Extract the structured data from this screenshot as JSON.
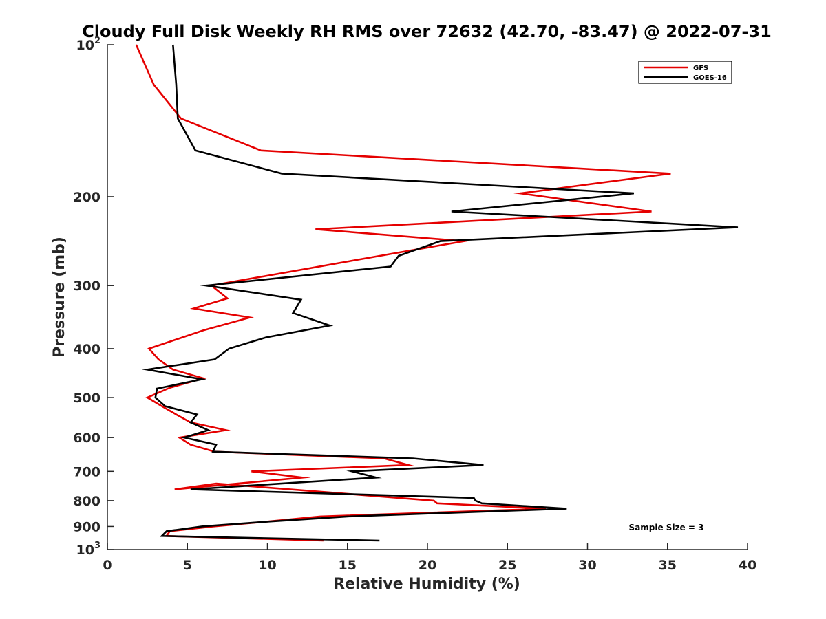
{
  "chart_data": {
    "type": "line",
    "title": "Cloudy Full Disk Weekly RH RMS over 72632 (42.70, -83.47) @ 2022-07-31",
    "xlabel": "Relative Humidity (%)",
    "ylabel": "Pressure (mb)",
    "xlim": [
      0,
      40
    ],
    "ylim": [
      100,
      1000
    ],
    "yscale": "log",
    "y_direction": "reversed",
    "x_ticks": [
      "0",
      "5",
      "10",
      "15",
      "20",
      "25",
      "30",
      "35",
      "40"
    ],
    "y_ticks": [
      {
        "value": 100,
        "base": "10",
        "exp": "2"
      },
      {
        "value": 200,
        "label": "200"
      },
      {
        "value": 300,
        "label": "300"
      },
      {
        "value": 400,
        "label": "400"
      },
      {
        "value": 500,
        "label": "500"
      },
      {
        "value": 600,
        "label": "600"
      },
      {
        "value": 700,
        "label": "700"
      },
      {
        "value": 800,
        "label": "800"
      },
      {
        "value": 900,
        "label": "900"
      },
      {
        "value": 1000,
        "base": "10",
        "exp": "3"
      }
    ],
    "legend_position": "top-right",
    "annotation": "Sample Size = 3",
    "series": [
      {
        "name": "GFS",
        "color": "#e50000",
        "x": [
          1.8,
          2.9,
          4.6,
          9.6,
          35.2,
          25.8,
          34.0,
          13.0,
          22.3,
          17.6,
          6.5,
          7.5,
          5.4,
          8.9,
          6.0,
          2.6,
          3.2,
          4.1,
          6.0,
          3.9,
          2.5,
          3.4,
          4.3,
          5.2,
          7.4,
          4.5,
          5.2,
          6.7,
          17.3,
          18.8,
          9.0,
          12.2,
          4.2,
          6.8,
          20.4,
          20.6,
          27.4,
          13.3,
          10.0,
          6.6,
          3.9,
          3.7,
          13.5
        ],
        "y": [
          100,
          120,
          140,
          162,
          180,
          197,
          214,
          232,
          245,
          260,
          300,
          318,
          333,
          347,
          368,
          400,
          420,
          440,
          458,
          478,
          500,
          520,
          540,
          560,
          580,
          600,
          620,
          640,
          660,
          680,
          700,
          720,
          760,
          740,
          800,
          810,
          830,
          860,
          880,
          900,
          920,
          940,
          960
        ]
      },
      {
        "name": "GOES-16",
        "color": "#000000",
        "x": [
          4.1,
          4.3,
          4.4,
          5.5,
          10.9,
          32.9,
          21.5,
          39.4,
          20.8,
          18.2,
          17.7,
          6.2,
          12.1,
          11.6,
          13.9,
          9.9,
          7.6,
          6.7,
          2.5,
          5.9,
          3.1,
          3.0,
          3.6,
          5.6,
          5.2,
          6.3,
          4.8,
          6.8,
          6.6,
          19.1,
          23.5,
          15.3,
          16.8,
          5.2,
          22.9,
          23.0,
          23.4,
          28.7,
          15.0,
          10.1,
          5.9,
          3.7,
          3.4,
          17.0
        ],
        "y": [
          100,
          120,
          140,
          162,
          180,
          197,
          214,
          230,
          245,
          262,
          275,
          300,
          320,
          340,
          360,
          380,
          400,
          420,
          440,
          460,
          480,
          500,
          520,
          540,
          560,
          580,
          600,
          620,
          640,
          660,
          680,
          700,
          720,
          760,
          790,
          800,
          810,
          830,
          860,
          880,
          900,
          920,
          940,
          960
        ]
      }
    ]
  }
}
